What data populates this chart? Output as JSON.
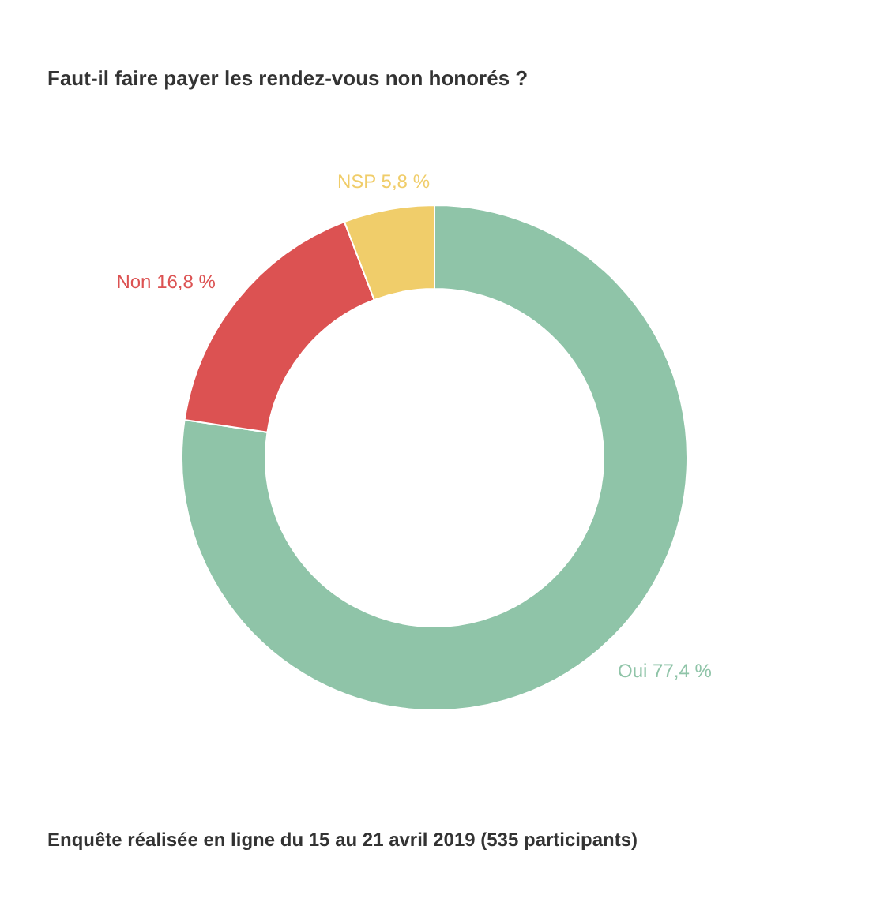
{
  "chart_data": {
    "type": "donut",
    "title": "Faut-il faire payer les rendez-vous non honorés ?",
    "categories": [
      "Oui",
      "Non",
      "NSP"
    ],
    "values": [
      77.4,
      16.8,
      5.8
    ],
    "value_labels": [
      "77,4 %",
      "16,8 %",
      "5,8 %"
    ],
    "colors": [
      "#8fc4a8",
      "#dc5252",
      "#f0cd6a"
    ],
    "annotations": [
      "Enquête réalisée en ligne du 15 au 21 avril 2019  (535 participants)"
    ]
  }
}
